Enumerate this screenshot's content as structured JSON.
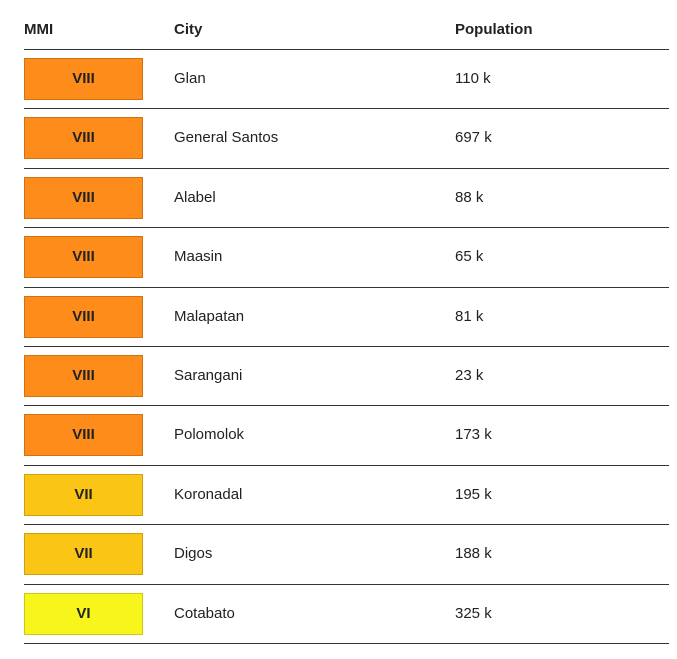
{
  "table": {
    "header": [
      "MMI",
      "City",
      "Population"
    ],
    "rows": [
      {
        "mmi": "VIII",
        "color": "#fd8c1a",
        "city": "Glan",
        "population": "110 k"
      },
      {
        "mmi": "VIII",
        "color": "#fd8c1a",
        "city": "General Santos",
        "population": "697 k"
      },
      {
        "mmi": "VIII",
        "color": "#fd8c1a",
        "city": "Alabel",
        "population": "88 k"
      },
      {
        "mmi": "VIII",
        "color": "#fd8c1a",
        "city": "Maasin",
        "population": "65 k"
      },
      {
        "mmi": "VIII",
        "color": "#fd8c1a",
        "city": "Malapatan",
        "population": "81 k"
      },
      {
        "mmi": "VIII",
        "color": "#fd8c1a",
        "city": "Sarangani",
        "population": "23 k"
      },
      {
        "mmi": "VIII",
        "color": "#fd8c1a",
        "city": "Polomolok",
        "population": "173 k"
      },
      {
        "mmi": "VII",
        "color": "#fac515",
        "city": "Koronadal",
        "population": "195 k"
      },
      {
        "mmi": "VII",
        "color": "#fac515",
        "city": "Digos",
        "population": "188 k"
      },
      {
        "mmi": "VI",
        "color": "#f8f51c",
        "city": "Cotabato",
        "population": "325 k"
      }
    ]
  }
}
